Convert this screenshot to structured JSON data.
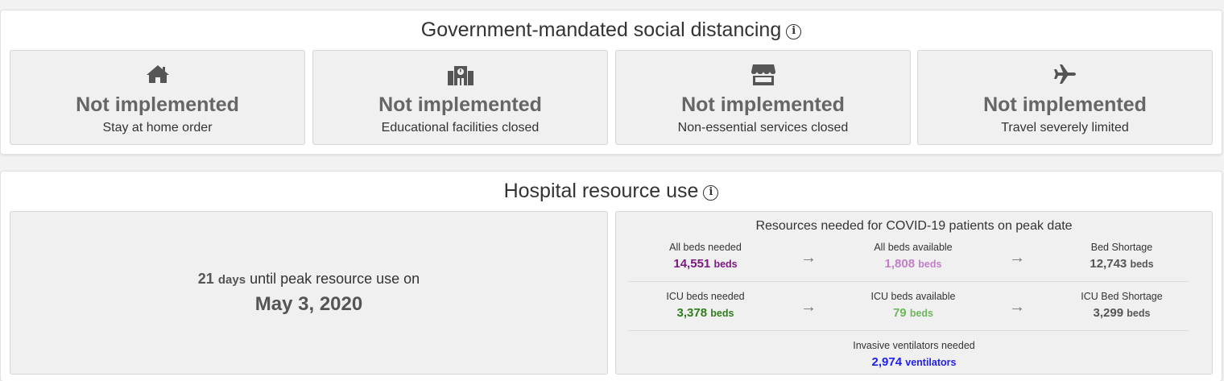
{
  "social_distancing": {
    "title": "Government-mandated social distancing",
    "info_icon": "i",
    "policies": [
      {
        "icon": "home-icon",
        "status": "Not implemented",
        "label": "Stay at home order"
      },
      {
        "icon": "school-icon",
        "status": "Not implemented",
        "label": "Educational facilities closed"
      },
      {
        "icon": "store-icon",
        "status": "Not implemented",
        "label": "Non-essential services closed"
      },
      {
        "icon": "plane-icon",
        "status": "Not implemented",
        "label": "Travel severely limited"
      }
    ]
  },
  "hospital": {
    "title": "Hospital resource use",
    "info_icon": "i",
    "peak": {
      "days": "21",
      "days_unit": "days",
      "text": "until peak resource use on",
      "date": "May 3, 2020"
    },
    "resources": {
      "title": "Resources needed for COVID-19 patients on peak date",
      "arrow": "→",
      "rows": [
        {
          "cells": [
            {
              "label": "All beds needed",
              "value": "14,551",
              "unit": "beds",
              "color": "#7b1a80"
            },
            {
              "label": "All beds available",
              "value": "1,808",
              "unit": "beds",
              "color": "#c27fc8"
            },
            {
              "label": "Bed Shortage",
              "value": "12,743",
              "unit": "beds",
              "color": "#555555"
            }
          ]
        },
        {
          "cells": [
            {
              "label": "ICU beds needed",
              "value": "3,378",
              "unit": "beds",
              "color": "#2e7d1b"
            },
            {
              "label": "ICU beds available",
              "value": "79",
              "unit": "beds",
              "color": "#6fb75c"
            },
            {
              "label": "ICU Bed Shortage",
              "value": "3,299",
              "unit": "beds",
              "color": "#555555"
            }
          ]
        }
      ],
      "ventilators": {
        "label": "Invasive ventilators needed",
        "value": "2,974",
        "unit": "ventilators",
        "color": "#1f1ff0"
      }
    }
  }
}
